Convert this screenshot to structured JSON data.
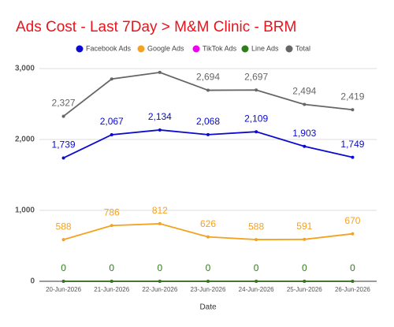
{
  "chart_data": {
    "type": "line",
    "title": "Ads Cost - Last 7Day > M&M Clinic - BRM",
    "x_label": "Date",
    "categories": [
      "20-Jun-2026",
      "21-Jun-2026",
      "22-Jun-2026",
      "23-Jun-2026",
      "24-Jun-2026",
      "25-Jun-2026",
      "26-Jun-2026"
    ],
    "series": [
      {
        "name": "Facebook Ads",
        "color": "#0a0ad0",
        "values": [
          1739,
          2067,
          2134,
          2068,
          2109,
          1903,
          1749
        ],
        "value_labels": [
          "1,739",
          "2,067",
          "2,134",
          "2,068",
          "2,109",
          "1,903",
          "1,749"
        ]
      },
      {
        "name": "Google Ads",
        "color": "#f4a21f",
        "values": [
          588,
          786,
          812,
          626,
          588,
          591,
          670
        ],
        "value_labels": [
          "588",
          "786",
          "812",
          "626",
          "588",
          "591",
          "670"
        ]
      },
      {
        "name": "TikTok Ads",
        "color": "#f000f0",
        "values": [
          0,
          0,
          0,
          0,
          0,
          0,
          0
        ]
      },
      {
        "name": "Line Ads",
        "color": "#2f7d16",
        "values": [
          0,
          0,
          0,
          0,
          0,
          0,
          0
        ],
        "data_labels": true
      },
      {
        "name": "Total",
        "color": "#666666",
        "values": [
          2327,
          2853,
          2946,
          2694,
          2697,
          2494,
          2419
        ],
        "value_labels": [
          "2,327",
          null,
          null,
          "2,694",
          "2,697",
          "2,494",
          "2,419"
        ]
      }
    ],
    "ylim": [
      0,
      3000
    ],
    "yticks": [
      0,
      {
        "value": 1000,
        "label": "1,000"
      },
      {
        "value": 2000,
        "label": "2,000"
      },
      {
        "value": 3000,
        "label": "3,000"
      }
    ],
    "grid": true,
    "legend": "top"
  }
}
